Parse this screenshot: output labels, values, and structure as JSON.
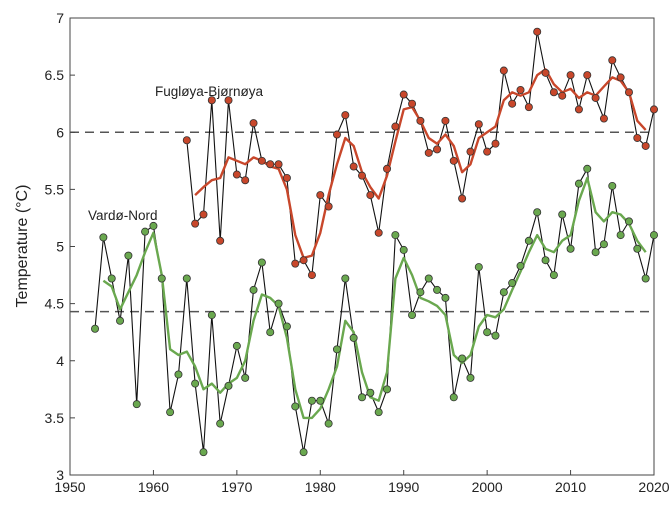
{
  "chart_data": {
    "type": "line",
    "xlabel": "",
    "ylabel": "Temperature (°C)",
    "xlim": [
      1950,
      2020
    ],
    "ylim": [
      3,
      7
    ],
    "xticks": [
      1950,
      1960,
      1970,
      1980,
      1990,
      2000,
      2010,
      2020
    ],
    "yticks": [
      3,
      3.5,
      4,
      4.5,
      5,
      5.5,
      6,
      6.5,
      7
    ],
    "grid": false,
    "annotations": [
      {
        "text": "Fugløya-Bjørnøya"
      },
      {
        "text": "Vardø-Nord"
      }
    ],
    "reference_lines": [
      6.0,
      4.43
    ],
    "series": [
      {
        "name": "Fugløya-Bjørnøya",
        "color": "#c8472b",
        "x": [
          1964,
          1965,
          1966,
          1967,
          1968,
          1969,
          1970,
          1971,
          1972,
          1973,
          1974,
          1975,
          1976,
          1977,
          1978,
          1979,
          1980,
          1981,
          1982,
          1983,
          1984,
          1985,
          1986,
          1987,
          1988,
          1989,
          1990,
          1991,
          1992,
          1993,
          1994,
          1995,
          1996,
          1997,
          1998,
          1999,
          2000,
          2001,
          2002,
          2003,
          2004,
          2005,
          2006,
          2007,
          2008,
          2009,
          2010,
          2011,
          2012,
          2013,
          2014,
          2015,
          2016,
          2017,
          2018,
          2019,
          2020
        ],
        "values": [
          5.93,
          5.2,
          5.28,
          6.28,
          5.05,
          6.28,
          5.63,
          5.58,
          6.08,
          5.75,
          5.72,
          5.72,
          5.6,
          4.85,
          4.88,
          4.75,
          5.45,
          5.35,
          5.98,
          6.15,
          5.7,
          5.62,
          5.45,
          5.12,
          5.68,
          6.05,
          6.33,
          6.25,
          6.1,
          5.82,
          5.85,
          6.1,
          5.75,
          5.42,
          5.83,
          6.07,
          5.83,
          5.9,
          6.54,
          6.25,
          6.37,
          6.22,
          6.88,
          6.52,
          6.35,
          6.32,
          6.5,
          6.2,
          6.5,
          6.3,
          6.12,
          6.63,
          6.48,
          6.35,
          5.95,
          5.88,
          6.2
        ],
        "smoothed": [
          null,
          5.45,
          5.52,
          5.58,
          5.6,
          5.78,
          5.75,
          5.72,
          5.78,
          5.75,
          5.7,
          5.68,
          5.5,
          5.1,
          4.9,
          4.92,
          5.12,
          5.45,
          5.72,
          5.95,
          5.88,
          5.65,
          5.52,
          5.42,
          5.62,
          5.92,
          6.2,
          6.22,
          6.1,
          5.95,
          5.9,
          5.98,
          5.88,
          5.65,
          5.72,
          5.95,
          6.0,
          6.05,
          6.28,
          6.35,
          6.32,
          6.35,
          6.5,
          6.55,
          6.42,
          6.35,
          6.38,
          6.3,
          6.35,
          6.32,
          6.4,
          6.48,
          6.45,
          6.35,
          6.1,
          6.02,
          null
        ]
      },
      {
        "name": "Vardø-Nord",
        "color": "#6aa84f",
        "x": [
          1953,
          1954,
          1955,
          1956,
          1957,
          1958,
          1959,
          1960,
          1961,
          1962,
          1963,
          1964,
          1965,
          1966,
          1967,
          1968,
          1969,
          1970,
          1971,
          1972,
          1973,
          1974,
          1975,
          1976,
          1977,
          1978,
          1979,
          1980,
          1981,
          1982,
          1983,
          1984,
          1985,
          1986,
          1987,
          1988,
          1989,
          1990,
          1991,
          1992,
          1993,
          1994,
          1995,
          1996,
          1997,
          1998,
          1999,
          2000,
          2001,
          2002,
          2003,
          2004,
          2005,
          2006,
          2007,
          2008,
          2009,
          2010,
          2011,
          2012,
          2013,
          2014,
          2015,
          2016,
          2017,
          2018,
          2019,
          2020
        ],
        "values": [
          4.28,
          5.08,
          4.72,
          4.35,
          4.92,
          3.62,
          5.13,
          5.18,
          4.72,
          3.55,
          3.88,
          4.72,
          3.8,
          3.2,
          4.4,
          3.45,
          3.78,
          4.13,
          3.85,
          4.62,
          4.86,
          4.25,
          4.5,
          4.3,
          3.6,
          3.2,
          3.65,
          3.65,
          3.45,
          4.1,
          4.72,
          4.2,
          3.68,
          3.72,
          3.55,
          3.75,
          5.1,
          4.97,
          4.4,
          4.6,
          4.72,
          4.62,
          4.55,
          3.68,
          4.02,
          3.85,
          4.82,
          4.25,
          4.22,
          4.6,
          4.68,
          4.83,
          5.05,
          5.3,
          4.88,
          4.75,
          5.28,
          4.98,
          5.55,
          5.68,
          4.95,
          5.02,
          5.53,
          5.1,
          5.22,
          4.98,
          4.72,
          5.1
        ],
        "smoothed": [
          null,
          4.7,
          4.65,
          4.45,
          4.6,
          4.75,
          4.95,
          5.12,
          4.75,
          4.1,
          4.05,
          4.08,
          3.95,
          3.75,
          3.8,
          3.72,
          3.8,
          3.85,
          4.0,
          4.35,
          4.58,
          4.55,
          4.48,
          4.2,
          3.75,
          3.5,
          3.5,
          3.58,
          3.75,
          3.95,
          4.35,
          4.25,
          3.9,
          3.68,
          3.65,
          3.9,
          4.72,
          4.9,
          4.75,
          4.55,
          4.52,
          4.48,
          4.4,
          4.05,
          3.98,
          4.05,
          4.3,
          4.4,
          4.38,
          4.45,
          4.62,
          4.78,
          4.95,
          5.1,
          4.98,
          4.95,
          5.05,
          5.1,
          5.4,
          5.6,
          5.3,
          5.22,
          5.3,
          5.28,
          5.2,
          5.05,
          4.95,
          null
        ]
      }
    ]
  }
}
